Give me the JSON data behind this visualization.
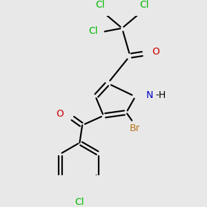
{
  "background_color": "#e8e8e8",
  "atom_colors": {
    "C": "#000000",
    "Cl": "#00bb00",
    "O": "#cc0000",
    "N": "#0000cc",
    "H": "#000000",
    "Br": "#b87820"
  },
  "figsize": [
    3.0,
    3.0
  ],
  "dpi": 100
}
